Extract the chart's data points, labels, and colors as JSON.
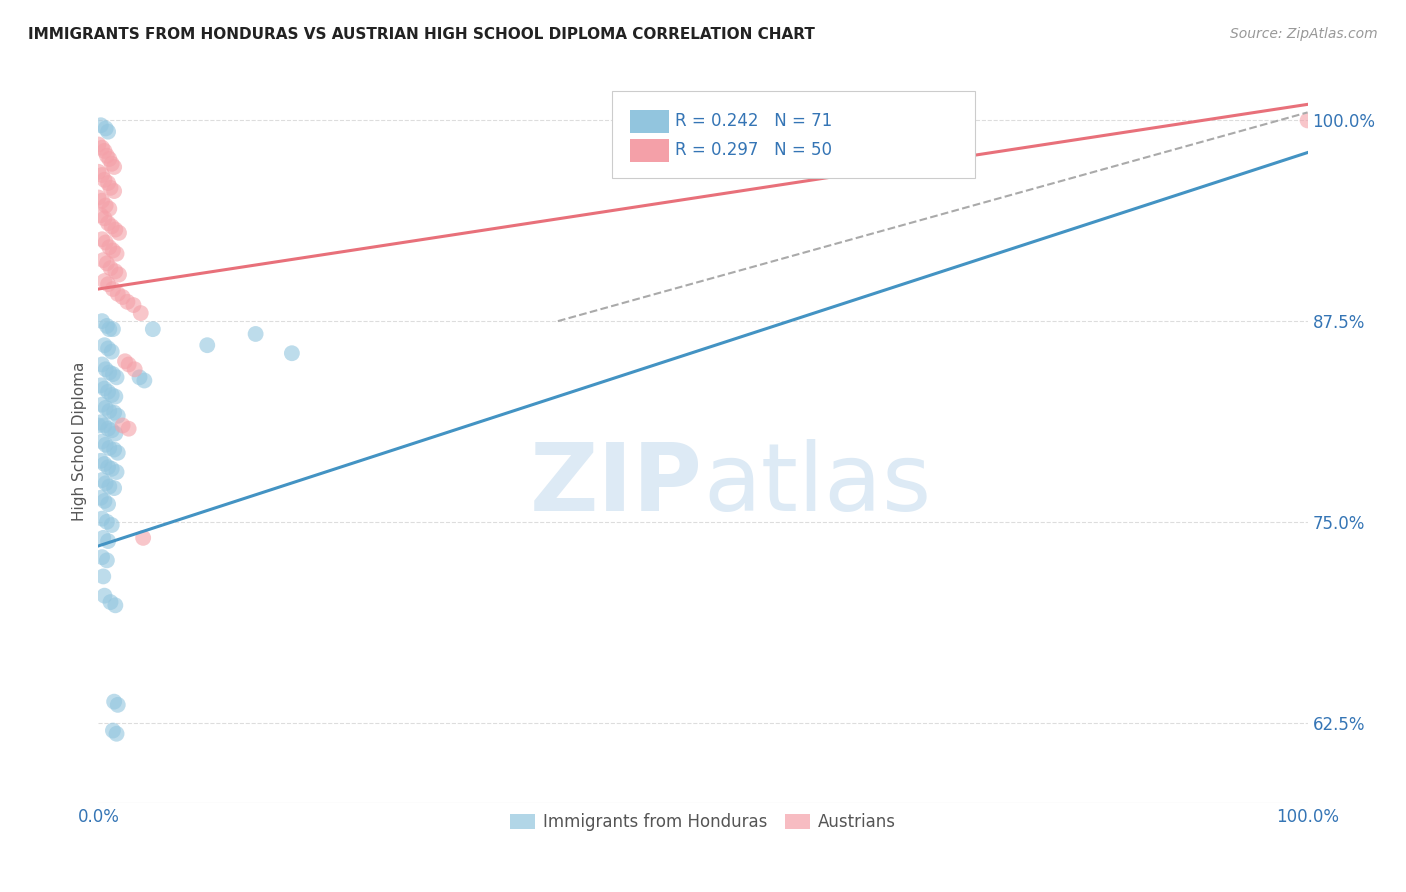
{
  "title": "IMMIGRANTS FROM HONDURAS VS AUSTRIAN HIGH SCHOOL DIPLOMA CORRELATION CHART",
  "source": "Source: ZipAtlas.com",
  "ylabel": "High School Diploma",
  "ytick_labels": [
    "100.0%",
    "87.5%",
    "75.0%",
    "62.5%"
  ],
  "ytick_values": [
    1.0,
    0.875,
    0.75,
    0.625
  ],
  "xlim": [
    0.0,
    1.0
  ],
  "ylim": [
    0.575,
    1.025
  ],
  "blue_R": "0.242",
  "blue_N": "71",
  "pink_R": "0.297",
  "pink_N": "50",
  "blue_color": "#92c5de",
  "pink_color": "#f4a0a8",
  "blue_line_color": "#4393c3",
  "pink_line_color": "#e8707a",
  "blue_line": [
    [
      0.0,
      0.735
    ],
    [
      1.0,
      0.98
    ]
  ],
  "pink_line": [
    [
      0.0,
      0.895
    ],
    [
      1.0,
      1.01
    ]
  ],
  "dashed_line": [
    [
      0.38,
      0.875
    ],
    [
      1.0,
      1.005
    ]
  ],
  "watermark_zip": "ZIP",
  "watermark_atlas": "atlas",
  "watermark_color": "#ddeaf5",
  "background_color": "#ffffff",
  "grid_color": "#dddddd",
  "blue_scatter": [
    [
      0.002,
      0.997
    ],
    [
      0.006,
      0.995
    ],
    [
      0.008,
      0.993
    ],
    [
      0.003,
      0.875
    ],
    [
      0.007,
      0.872
    ],
    [
      0.009,
      0.87
    ],
    [
      0.012,
      0.87
    ],
    [
      0.005,
      0.86
    ],
    [
      0.008,
      0.858
    ],
    [
      0.011,
      0.856
    ],
    [
      0.003,
      0.848
    ],
    [
      0.006,
      0.845
    ],
    [
      0.009,
      0.843
    ],
    [
      0.012,
      0.842
    ],
    [
      0.015,
      0.84
    ],
    [
      0.002,
      0.835
    ],
    [
      0.005,
      0.833
    ],
    [
      0.008,
      0.831
    ],
    [
      0.011,
      0.829
    ],
    [
      0.014,
      0.828
    ],
    [
      0.003,
      0.823
    ],
    [
      0.006,
      0.821
    ],
    [
      0.009,
      0.819
    ],
    [
      0.013,
      0.818
    ],
    [
      0.016,
      0.816
    ],
    [
      0.002,
      0.812
    ],
    [
      0.005,
      0.81
    ],
    [
      0.008,
      0.808
    ],
    [
      0.011,
      0.807
    ],
    [
      0.014,
      0.805
    ],
    [
      0.003,
      0.8
    ],
    [
      0.006,
      0.798
    ],
    [
      0.009,
      0.796
    ],
    [
      0.013,
      0.795
    ],
    [
      0.016,
      0.793
    ],
    [
      0.002,
      0.788
    ],
    [
      0.005,
      0.786
    ],
    [
      0.008,
      0.784
    ],
    [
      0.011,
      0.783
    ],
    [
      0.015,
      0.781
    ],
    [
      0.003,
      0.776
    ],
    [
      0.006,
      0.774
    ],
    [
      0.009,
      0.772
    ],
    [
      0.013,
      0.771
    ],
    [
      0.002,
      0.765
    ],
    [
      0.005,
      0.763
    ],
    [
      0.008,
      0.761
    ],
    [
      0.003,
      0.752
    ],
    [
      0.007,
      0.75
    ],
    [
      0.011,
      0.748
    ],
    [
      0.004,
      0.74
    ],
    [
      0.008,
      0.738
    ],
    [
      0.003,
      0.728
    ],
    [
      0.007,
      0.726
    ],
    [
      0.004,
      0.716
    ],
    [
      0.005,
      0.704
    ],
    [
      0.01,
      0.7
    ],
    [
      0.014,
      0.698
    ],
    [
      0.013,
      0.638
    ],
    [
      0.016,
      0.636
    ],
    [
      0.012,
      0.62
    ],
    [
      0.015,
      0.618
    ],
    [
      0.034,
      0.84
    ],
    [
      0.038,
      0.838
    ],
    [
      0.045,
      0.87
    ],
    [
      0.09,
      0.86
    ],
    [
      0.13,
      0.867
    ],
    [
      0.16,
      0.855
    ],
    [
      0.0,
      0.81
    ]
  ],
  "pink_scatter": [
    [
      0.0,
      0.985
    ],
    [
      0.003,
      0.983
    ],
    [
      0.005,
      0.981
    ],
    [
      0.007,
      0.978
    ],
    [
      0.009,
      0.976
    ],
    [
      0.011,
      0.973
    ],
    [
      0.013,
      0.971
    ],
    [
      0.0,
      0.968
    ],
    [
      0.003,
      0.966
    ],
    [
      0.005,
      0.963
    ],
    [
      0.008,
      0.961
    ],
    [
      0.01,
      0.958
    ],
    [
      0.013,
      0.956
    ],
    [
      0.0,
      0.952
    ],
    [
      0.003,
      0.95
    ],
    [
      0.006,
      0.947
    ],
    [
      0.009,
      0.945
    ],
    [
      0.002,
      0.941
    ],
    [
      0.005,
      0.939
    ],
    [
      0.008,
      0.936
    ],
    [
      0.011,
      0.934
    ],
    [
      0.014,
      0.932
    ],
    [
      0.017,
      0.93
    ],
    [
      0.003,
      0.926
    ],
    [
      0.006,
      0.924
    ],
    [
      0.009,
      0.921
    ],
    [
      0.012,
      0.919
    ],
    [
      0.015,
      0.917
    ],
    [
      0.004,
      0.913
    ],
    [
      0.007,
      0.911
    ],
    [
      0.01,
      0.908
    ],
    [
      0.014,
      0.906
    ],
    [
      0.017,
      0.904
    ],
    [
      0.005,
      0.9
    ],
    [
      0.008,
      0.898
    ],
    [
      0.012,
      0.895
    ],
    [
      0.016,
      0.892
    ],
    [
      0.02,
      0.89
    ],
    [
      0.024,
      0.887
    ],
    [
      0.029,
      0.885
    ],
    [
      0.035,
      0.88
    ],
    [
      0.022,
      0.85
    ],
    [
      0.025,
      0.848
    ],
    [
      0.03,
      0.845
    ],
    [
      0.02,
      0.81
    ],
    [
      0.025,
      0.808
    ],
    [
      0.037,
      0.74
    ],
    [
      1.0,
      1.0
    ]
  ]
}
